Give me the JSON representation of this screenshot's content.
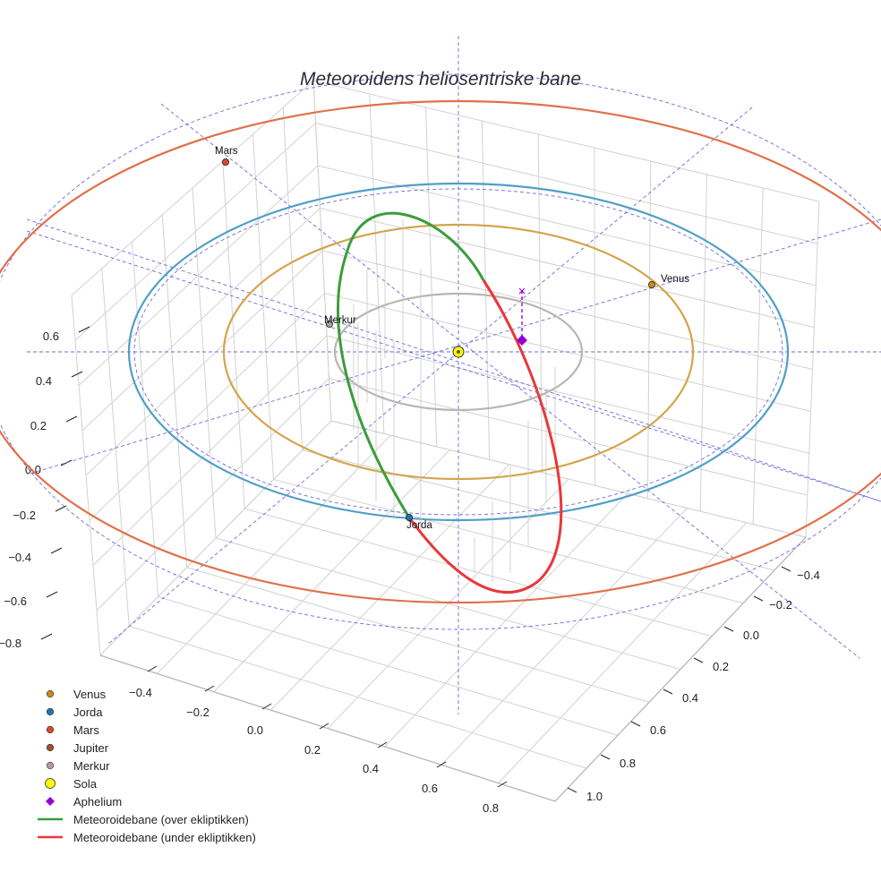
{
  "chart_data": {
    "type": "scatter-3d",
    "title": "Meteoroidens heliosentriske bane",
    "axes": {
      "x_ticks": [
        "−0.4",
        "−0.2",
        "0.0",
        "0.2",
        "0.4",
        "0.6",
        "0.8"
      ],
      "y_ticks": [
        "−0.4",
        "−0.2",
        "0.0",
        "0.2",
        "0.4",
        "0.6",
        "0.8",
        "1.0"
      ],
      "z_ticks": [
        "0.6",
        "0.4",
        "0.2",
        "0.0",
        "−0.2",
        "−0.4",
        "−0.6",
        "−0.8"
      ],
      "grid": true
    },
    "planet_orbits": [
      {
        "name": "Merkur",
        "radius_au": 0.39,
        "color": "#bdb3b0"
      },
      {
        "name": "Venus",
        "radius_au": 0.72,
        "color": "#d4a44a"
      },
      {
        "name": "Jorda",
        "radius_au": 1.0,
        "color": "#4f9fc6"
      },
      {
        "name": "Mars",
        "radius_au": 1.52,
        "color": "#e0714a"
      }
    ],
    "planets": [
      {
        "name": "Merkur",
        "label": "Merkur",
        "color": "#b09d98"
      },
      {
        "name": "Venus",
        "label": "Venus",
        "color": "#c88a1a"
      },
      {
        "name": "Jorda",
        "label": "Jorda",
        "color": "#1f77b4"
      },
      {
        "name": "Mars",
        "label": "Mars",
        "color": "#d94a2a"
      }
    ],
    "sun": {
      "label": "Sola",
      "color": "#ffff00"
    },
    "aphelium": {
      "label": "Aphelium",
      "color": "#9400d3"
    },
    "meteoroid_orbit": {
      "above_label": "Meteoroidebane (over ekliptikken)",
      "below_label": "Meteoroidebane (under ekliptikken)",
      "above_color": "#3a9d3a",
      "below_color": "#e8383b"
    },
    "legend": [
      {
        "label": "Venus",
        "marker": "circle",
        "color": "#c88a1a"
      },
      {
        "label": "Jorda",
        "marker": "circle",
        "color": "#1f77b4"
      },
      {
        "label": "Mars",
        "marker": "circle",
        "color": "#d94a2a"
      },
      {
        "label": "Jupiter",
        "marker": "circle",
        "color": "#a0522d"
      },
      {
        "label": "Merkur",
        "marker": "circle",
        "color": "#b09d98"
      },
      {
        "label": "Sola",
        "marker": "circle-big",
        "color": "#ffff00"
      },
      {
        "label": "Aphelium",
        "marker": "diamond",
        "color": "#9400d3"
      },
      {
        "label": "Meteoroidebane (over ekliptikken)",
        "marker": "line",
        "color": "#3a9d3a"
      },
      {
        "label": "Meteoroidebane (under ekliptikken)",
        "marker": "line",
        "color": "#e8383b"
      }
    ]
  }
}
